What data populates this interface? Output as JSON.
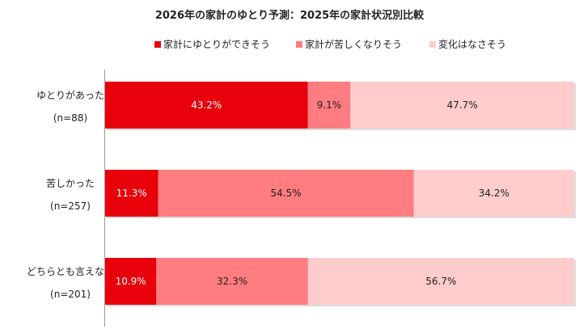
{
  "chart_data": {
    "type": "bar",
    "orientation": "horizontal-stacked-percent",
    "title": "2026年の家計のゆとり予測：2025年の家計状況別比較",
    "legend_position": "top",
    "categories": [
      {
        "name": "ゆとりがあった",
        "n": "(n=88)"
      },
      {
        "name": "苦しかった",
        "n": "(n=257)"
      },
      {
        "name": "どちらとも言えない",
        "n": "(n=201)"
      }
    ],
    "series": [
      {
        "name": "家計にゆとりができそう",
        "color": "#e8000b",
        "values": [
          43.2,
          11.3,
          10.9
        ],
        "labels": [
          "43.2%",
          "11.3%",
          "10.9%"
        ]
      },
      {
        "name": "家計が苦しくなりそう",
        "color": "#ff7c80",
        "values": [
          9.1,
          54.5,
          32.3
        ],
        "labels": [
          "9.1%",
          "54.5%",
          "32.3%"
        ]
      },
      {
        "name": "変化はなさそう",
        "color": "#ffcccc",
        "values": [
          47.7,
          34.2,
          56.7
        ],
        "labels": [
          "47.7%",
          "34.2%",
          "56.7%"
        ]
      }
    ],
    "xlim": [
      0,
      100
    ]
  }
}
